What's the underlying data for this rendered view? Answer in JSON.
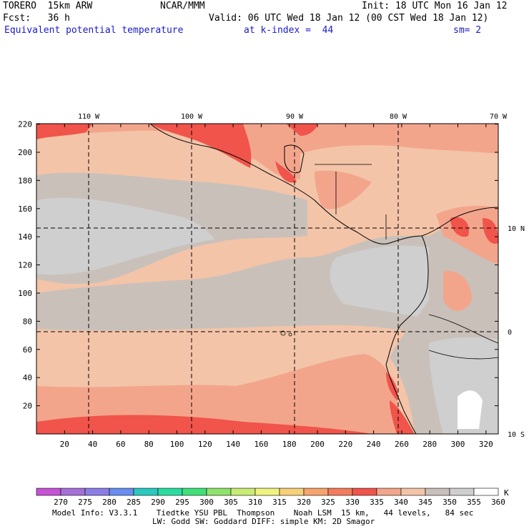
{
  "header": {
    "model_name": "TORERO  15km ARW",
    "center": "NCAR/MMM",
    "init": "Init: 18 UTC Mon 16 Jan 12",
    "fcst": "Fcst:   36 h",
    "valid": "Valid: 06 UTC Wed 18 Jan 12 (00 CST Wed 18 Jan 12)",
    "field": "Equivalent potential temperature",
    "level": "at k-index =  44",
    "smoothing": "sm= 2"
  },
  "axes": {
    "y_ticks": [
      "20",
      "40",
      "60",
      "80",
      "100",
      "120",
      "140",
      "160",
      "180",
      "200",
      "220"
    ],
    "x_ticks": [
      "20",
      "40",
      "60",
      "80",
      "100",
      "120",
      "140",
      "160",
      "180",
      "200",
      "220",
      "240",
      "260",
      "280",
      "300",
      "320"
    ],
    "lon_labels": [
      "110 W",
      "100 W",
      "90 W",
      "80 W",
      "70 W"
    ],
    "lat_labels": [
      "10 N",
      "0",
      "10 S"
    ]
  },
  "colorbar": {
    "unit": "K",
    "labels": [
      "270",
      "275",
      "280",
      "285",
      "290",
      "295",
      "300",
      "305",
      "310",
      "315",
      "320",
      "325",
      "330",
      "335",
      "340",
      "345",
      "350",
      "355",
      "360"
    ],
    "colors": [
      "#c653d6",
      "#a56fd8",
      "#8a7ee6",
      "#6a8ef0",
      "#29c9c0",
      "#2bdca0",
      "#3fe07a",
      "#8fe36a",
      "#c9ec73",
      "#eef37d",
      "#f7d07a",
      "#f7a46c",
      "#f47c5c",
      "#f0544a",
      "#f3a58c",
      "#f3c4a8",
      "#c9c0ba",
      "#cfcfcf",
      "#ffffff"
    ]
  },
  "footer": {
    "line1": "Model Info: V3.3.1    Tiedtke YSU PBL  Thompson    Noah LSM  15 km,   44 levels,   84 sec",
    "line2": "LW: Godd SW: Goddard DIFF: simple KM: 2D Smagor"
  }
}
